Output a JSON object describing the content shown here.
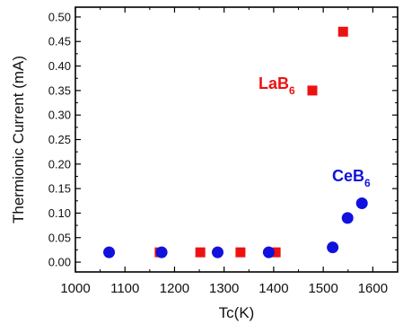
{
  "chart_data": {
    "type": "scatter",
    "xlabel": "Tc(K)",
    "ylabel": "Thermionic Current (mA)",
    "xlim": [
      1000,
      1650
    ],
    "ylim": [
      -0.02,
      0.52
    ],
    "x_ticks": [
      1000,
      1100,
      1200,
      1300,
      1400,
      1500,
      1600
    ],
    "y_ticks": [
      0.0,
      0.05,
      0.1,
      0.15,
      0.2,
      0.25,
      0.3,
      0.35,
      0.4,
      0.45,
      0.5
    ],
    "x_tick_labels": [
      "1000",
      "1100",
      "1200",
      "1300",
      "1400",
      "1500",
      "1600"
    ],
    "y_tick_labels": [
      "0.00",
      "0.05",
      "0.10",
      "0.15",
      "0.20",
      "0.25",
      "0.30",
      "0.35",
      "0.40",
      "0.45",
      "0.50"
    ],
    "grid": false,
    "series": [
      {
        "label": "LaB",
        "label_sub": "6",
        "color": "#ee1111",
        "marker": "square",
        "points": [
          {
            "x": 1170,
            "y": 0.02
          },
          {
            "x": 1252,
            "y": 0.02
          },
          {
            "x": 1333,
            "y": 0.02
          },
          {
            "x": 1404,
            "y": 0.02
          },
          {
            "x": 1478,
            "y": 0.35
          },
          {
            "x": 1540,
            "y": 0.47
          }
        ]
      },
      {
        "label": "CeB",
        "label_sub": "6",
        "color": "#1111dd",
        "marker": "circle",
        "points": [
          {
            "x": 1068,
            "y": 0.02
          },
          {
            "x": 1174,
            "y": 0.02
          },
          {
            "x": 1287,
            "y": 0.02
          },
          {
            "x": 1390,
            "y": 0.02
          },
          {
            "x": 1519,
            "y": 0.03
          },
          {
            "x": 1549,
            "y": 0.09
          },
          {
            "x": 1578,
            "y": 0.12
          }
        ]
      }
    ]
  }
}
